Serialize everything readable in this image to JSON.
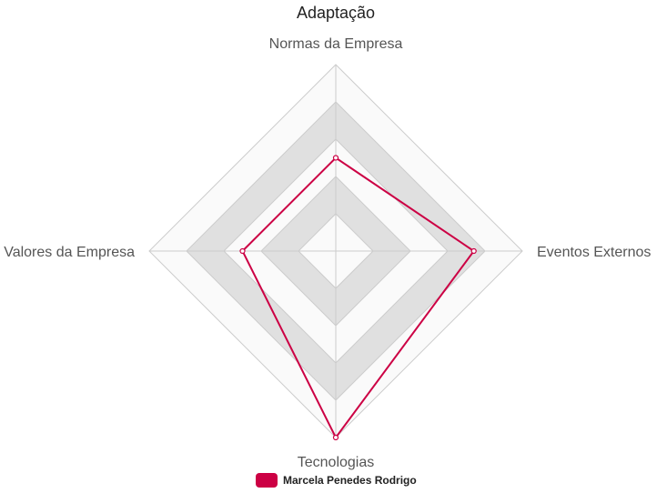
{
  "chart_data": {
    "type": "radar",
    "title": "Adaptação",
    "axes": [
      "Normas da Empresa",
      "Eventos Externos",
      "Tecnologias",
      "Valores da Empresa"
    ],
    "range": [
      0,
      5
    ],
    "rings": 5,
    "series": [
      {
        "name": "Marcela Penedes Rodrigo",
        "values": [
          2.5,
          3.7,
          5,
          2.5
        ],
        "color": "#cc0044"
      }
    ],
    "legend_position": "bottom"
  }
}
